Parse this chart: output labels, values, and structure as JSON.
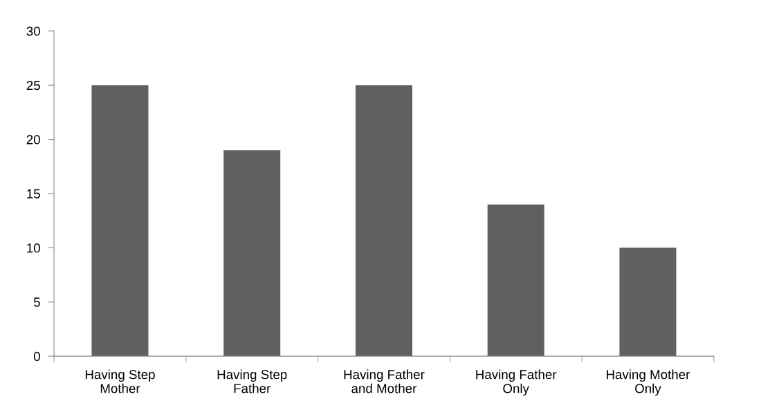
{
  "chart_data": {
    "type": "bar",
    "categories": [
      "Having Step\nMother",
      "Having Step\nFather",
      "Having Father\nand Mother",
      "Having Father\nOnly",
      "Having Mother\nOnly"
    ],
    "values": [
      25,
      19,
      25,
      14,
      10
    ],
    "color": "#606060",
    "ylim": [
      0,
      30
    ],
    "yticks": [
      0,
      5,
      10,
      15,
      20,
      25,
      30
    ],
    "grid": false,
    "legend": false
  }
}
